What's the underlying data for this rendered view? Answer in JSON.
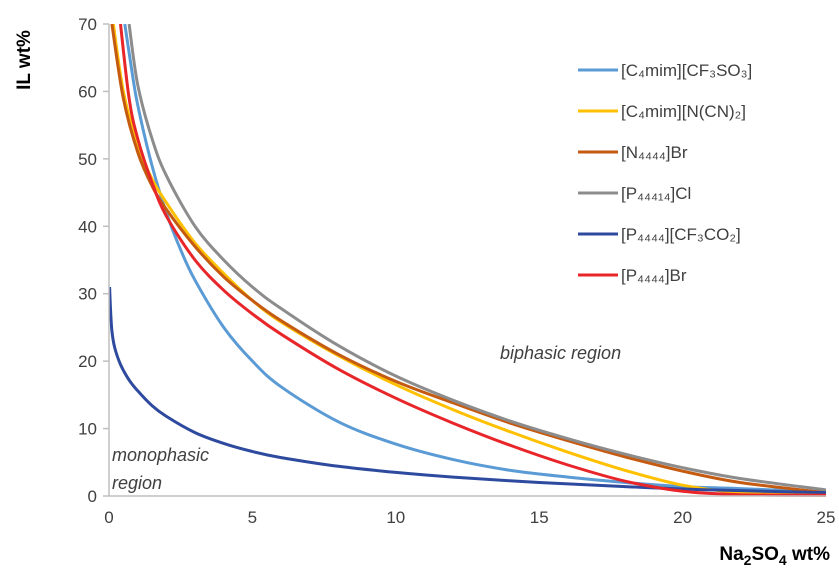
{
  "chart_data": {
    "type": "line",
    "xlabel": "Na₂SO₄ wt%",
    "ylabel": "IL wt%",
    "xlim": [
      0,
      25
    ],
    "ylim": [
      0,
      70
    ],
    "x_ticks": [
      0,
      5,
      10,
      15,
      20,
      25
    ],
    "y_ticks": [
      0,
      10,
      20,
      30,
      40,
      50,
      60,
      70
    ],
    "grid": false,
    "legend_position": "top-right",
    "annotations": {
      "biphasic": "biphasic region",
      "monophasic_line1": "monophasic",
      "monophasic_line2": "region"
    },
    "series": [
      {
        "name": "[C₄mim][CF₃SO₃]",
        "color": "#5B9BD5",
        "x": [
          0.55,
          0.8,
          1.0,
          1.5,
          2.0,
          2.5,
          3.0,
          4.0,
          5.0,
          6.0,
          8.0,
          10.0,
          12.0,
          14.0,
          16.0,
          18.0,
          20.0,
          22.0,
          25.0
        ],
        "y": [
          70,
          63,
          58,
          49,
          42,
          36.5,
          32,
          25,
          20,
          16.2,
          11,
          7.7,
          5.4,
          3.8,
          2.8,
          2.0,
          1.4,
          1.1,
          0.6
        ]
      },
      {
        "name": "[C₄mim][N(CN)₂]",
        "color": "#FFC000",
        "x": [
          0.15,
          0.5,
          1.0,
          1.5,
          2.0,
          3.0,
          4.0,
          5.0,
          6.0,
          8.0,
          10.0,
          12.0,
          14.0,
          16.0,
          18.0,
          20.0,
          22.0,
          25.0
        ],
        "y": [
          70,
          60,
          52,
          47,
          43.5,
          37.5,
          33,
          29,
          25.8,
          20.8,
          16.5,
          12.8,
          9.5,
          6.5,
          3.8,
          1.6,
          0.5,
          0.1
        ]
      },
      {
        "name": "[N₄₄₄₄]Br",
        "color": "#C55A11",
        "x": [
          0.1,
          0.5,
          1.0,
          1.5,
          2.0,
          3.0,
          4.0,
          5.0,
          6.0,
          8.0,
          10.0,
          12.0,
          14.0,
          16.0,
          18.0,
          20.0,
          22.0,
          25.0
        ],
        "y": [
          70,
          59,
          51,
          46,
          42.5,
          37,
          32.5,
          29,
          26,
          21,
          17,
          13.8,
          10.8,
          8.2,
          5.8,
          3.7,
          2.0,
          0.5
        ]
      },
      {
        "name": "[P₄₄₄₁₄]Cl",
        "color": "#8C8C8C",
        "x": [
          0.7,
          1.0,
          1.5,
          2.0,
          3.0,
          4.0,
          5.0,
          6.0,
          8.0,
          10.0,
          12.0,
          14.0,
          16.0,
          18.0,
          20.0,
          22.0,
          25.0
        ],
        "y": [
          70,
          61,
          53,
          47.5,
          40,
          35,
          31,
          27.8,
          22.3,
          17.8,
          14.2,
          11.1,
          8.5,
          6.2,
          4.2,
          2.6,
          0.9
        ]
      },
      {
        "name": "[P₄₄₄₄][CF₃CO₂]",
        "color": "#2E4A9E",
        "x": [
          0.02,
          0.05,
          0.1,
          0.2,
          0.4,
          0.7,
          1.0,
          1.5,
          2.0,
          3.0,
          4.0,
          5.0,
          6.0,
          8.0,
          10.0,
          12.0,
          15.0,
          18.0,
          21.0,
          25.0
        ],
        "y": [
          31,
          28,
          24.5,
          22,
          19.5,
          17.2,
          15.6,
          13.4,
          11.8,
          9.4,
          7.8,
          6.6,
          5.7,
          4.4,
          3.5,
          2.8,
          2.0,
          1.4,
          0.9,
          0.5
        ]
      },
      {
        "name": "[P₄₄₄₄]Br",
        "color": "#E8262A",
        "x": [
          0.4,
          0.7,
          1.0,
          1.5,
          2.0,
          3.0,
          4.0,
          5.0,
          6.0,
          8.0,
          10.0,
          12.0,
          14.0,
          16.0,
          18.0,
          20.0,
          22.0,
          25.0
        ],
        "y": [
          70,
          59,
          53,
          46.5,
          41.5,
          35,
          30.5,
          27,
          24,
          18.8,
          14.5,
          10.8,
          7.5,
          4.6,
          2.2,
          0.7,
          0.2,
          0.1
        ]
      }
    ]
  }
}
